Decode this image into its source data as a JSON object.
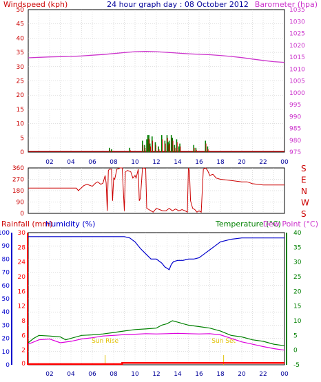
{
  "page": {
    "title": "24 hour graph day : 08 October 2012"
  },
  "colors": {
    "wind": "#cc0000",
    "gust": "#008000",
    "baro": "#cc33cc",
    "dir": "#cc0000",
    "rain": "#ff0000",
    "humidity": "#0000cc",
    "temperature": "#008000",
    "dewpoint": "#dd00dd",
    "sun": "#e0c000",
    "grid": "#c0c0c0",
    "frame": "#000000"
  },
  "x_ticks": [
    "02",
    "04",
    "06",
    "08",
    "10",
    "12",
    "14",
    "16",
    "18",
    "20",
    "22",
    "00"
  ],
  "chart_data": [
    {
      "type": "line",
      "name": "wind-barometer",
      "title": "24 hour graph day : 08 October 2012",
      "left_axis_label": "Windspeed (kph)",
      "right_axis_label": "Barometer (hpa)",
      "left_ticks": [
        "0",
        "5",
        "10",
        "15",
        "20",
        "25",
        "30",
        "35",
        "40",
        "45",
        "50"
      ],
      "right_ticks": [
        "975",
        "980",
        "985",
        "990",
        "995",
        "1000",
        "1005",
        "1010",
        "1015",
        "1020",
        "1025",
        "1030",
        "1035"
      ],
      "left_ylim": [
        0,
        50
      ],
      "right_ylim": [
        975,
        1035
      ],
      "barometer": {
        "x": [
          0,
          1,
          2,
          3,
          4,
          5,
          6,
          7,
          8,
          9,
          10,
          11,
          12,
          13,
          14,
          15,
          16,
          17,
          18,
          19,
          20,
          21,
          22,
          23,
          24
        ],
        "values": [
          1014.7,
          1014.9,
          1015.1,
          1015.2,
          1015.3,
          1015.5,
          1015.8,
          1016.1,
          1016.5,
          1016.9,
          1017.3,
          1017.4,
          1017.3,
          1017.0,
          1016.7,
          1016.4,
          1016.2,
          1016.0,
          1015.7,
          1015.3,
          1014.8,
          1014.2,
          1013.6,
          1013.1,
          1012.8
        ]
      },
      "wind_bars": {
        "x": [
          7.6,
          7.8,
          9.5,
          10.7,
          10.9,
          11.1,
          11.2,
          11.3,
          11.4,
          11.6,
          11.9,
          12.2,
          12.5,
          12.8,
          13.0,
          13.1,
          13.2,
          13.4,
          13.5,
          13.7,
          13.9,
          14.1,
          14.2,
          15.5,
          15.7,
          16.6,
          16.8
        ],
        "gust": [
          1.5,
          1.0,
          1.5,
          4.0,
          2.5,
          4.5,
          6.0,
          6.0,
          3.0,
          5.5,
          3.5,
          2.0,
          6.0,
          4.0,
          6.0,
          3.5,
          4.0,
          6.0,
          5.0,
          2.5,
          4.5,
          2.0,
          3.0,
          2.5,
          1.5,
          4.0,
          2.0
        ],
        "speed": [
          0.8,
          0.5,
          0.7,
          2.5,
          1.5,
          3.0,
          5.0,
          4.5,
          2.0,
          4.0,
          2.5,
          1.0,
          4.5,
          3.0,
          5.0,
          2.5,
          3.0,
          5.0,
          4.0,
          1.5,
          3.5,
          1.0,
          2.0,
          1.5,
          0.8,
          3.0,
          1.0
        ]
      }
    },
    {
      "type": "line",
      "name": "wind-direction",
      "left_ticks": [
        "0",
        "90",
        "180",
        "270",
        "360"
      ],
      "right_ticks": [
        "S",
        "E",
        "N",
        "W",
        "S"
      ],
      "ylim": [
        0,
        360
      ],
      "direction": {
        "x": [
          0,
          4.5,
          4.7,
          5.2,
          5.5,
          6.0,
          6.3,
          6.5,
          6.8,
          7.0,
          7.2,
          7.3,
          7.4,
          7.5,
          7.6,
          7.8,
          7.9,
          8.0,
          8.1,
          8.3,
          8.5,
          8.6,
          8.8,
          9.0,
          9.1,
          9.3,
          9.6,
          9.8,
          10.0,
          10.1,
          10.3,
          10.4,
          10.5,
          10.7,
          10.8,
          11.0,
          11.1,
          11.3,
          11.5,
          11.7,
          12.0,
          12.3,
          12.6,
          12.9,
          13.2,
          13.5,
          13.8,
          14.1,
          14.4,
          14.7,
          14.9,
          15.0,
          15.1,
          15.2,
          15.4,
          15.6,
          15.8,
          16.0,
          16.2,
          16.4,
          16.6,
          16.8,
          17.0,
          17.3,
          17.6,
          18.0,
          19.0,
          20.0,
          20.5,
          21.0,
          22.0,
          24.0
        ],
        "values": [
          200,
          200,
          180,
          220,
          230,
          215,
          240,
          250,
          230,
          240,
          300,
          240,
          20,
          340,
          350,
          350,
          100,
          280,
          270,
          350,
          355,
          360,
          360,
          20,
          330,
          340,
          330,
          280,
          300,
          280,
          350,
          100,
          120,
          355,
          360,
          355,
          40,
          30,
          20,
          10,
          40,
          30,
          20,
          20,
          40,
          20,
          35,
          20,
          30,
          20,
          10,
          360,
          340,
          100,
          40,
          30,
          10,
          20,
          10,
          350,
          360,
          340,
          300,
          310,
          280,
          270,
          260,
          250,
          250,
          235,
          225,
          225
        ]
      }
    },
    {
      "type": "line",
      "name": "rain-humidity-temperature",
      "left_axis_label_1": "Rainfall (mm)",
      "left_axis_label_2": "Humidity (%)",
      "right_axis_label_1": "Temperature (°C)",
      "right_axis_label_2": "Dew Point (°C)",
      "humidity_ticks": [
        "0",
        "10",
        "20",
        "30",
        "40",
        "50",
        "60",
        "70",
        "80",
        "90",
        "100"
      ],
      "rain_ticks": [
        "0",
        "2",
        "6",
        "8",
        "12",
        "16",
        "20",
        "24",
        "28",
        "30"
      ],
      "temp_ticks": [
        "-5",
        "0",
        "5",
        "10",
        "15",
        "20",
        "25",
        "30",
        "35",
        "40"
      ],
      "humidity_ylim": [
        0,
        100
      ],
      "temp_ylim": [
        -5,
        40
      ],
      "annotations": [
        {
          "text": "Sun Rise",
          "x": 7.2
        },
        {
          "text": "Sun Set",
          "x": 18.3
        }
      ],
      "humidity": {
        "x": [
          0,
          2,
          4,
          6,
          8,
          9,
          9.5,
          10,
          10.5,
          11,
          11.5,
          12,
          12.5,
          12.8,
          13,
          13.2,
          13.4,
          13.6,
          14,
          14.5,
          15,
          15.5,
          16,
          16.5,
          17,
          17.5,
          18,
          19,
          20,
          21,
          22,
          23,
          24
        ],
        "values": [
          97,
          97,
          97,
          97,
          97,
          97,
          96,
          93,
          88,
          84,
          80,
          80,
          77,
          74,
          73,
          72,
          76,
          78,
          79,
          79,
          80,
          80,
          81,
          84,
          87,
          90,
          93,
          95,
          96,
          96,
          96,
          96,
          96
        ]
      },
      "temperature": {
        "x": [
          0,
          0.5,
          1,
          2,
          3,
          3.5,
          4,
          5,
          6,
          7,
          8,
          9,
          10,
          11,
          12,
          12.5,
          13,
          13.5,
          14,
          14.5,
          15,
          16,
          17,
          18,
          19,
          20,
          21,
          22,
          23,
          24
        ],
        "values": [
          2.5,
          4.0,
          5.0,
          4.8,
          4.5,
          3.5,
          4.0,
          5.0,
          5.2,
          5.5,
          6.0,
          6.5,
          7.0,
          7.2,
          7.5,
          8.5,
          9.0,
          10.0,
          9.5,
          9.0,
          8.5,
          8.0,
          7.5,
          6.5,
          5.0,
          4.5,
          3.5,
          3.0,
          2.0,
          1.5
        ]
      },
      "dewpoint": {
        "x": [
          0,
          1,
          2,
          3,
          4,
          5,
          6,
          7,
          8,
          9,
          10,
          11,
          12,
          13,
          14,
          15,
          16,
          17,
          18,
          19,
          20,
          21,
          22,
          23,
          24
        ],
        "values": [
          2.0,
          3.5,
          3.8,
          2.5,
          3.0,
          3.8,
          4.2,
          4.8,
          5.0,
          5.3,
          5.4,
          5.6,
          5.5,
          5.6,
          5.7,
          5.6,
          5.5,
          5.6,
          5.2,
          4.0,
          2.8,
          2.0,
          1.2,
          0.5,
          0.0
        ]
      },
      "rainfall": {
        "x": [
          0,
          8.8,
          8.8,
          24
        ],
        "values": [
          0.0,
          0.0,
          0.3,
          0.3
        ]
      }
    }
  ]
}
